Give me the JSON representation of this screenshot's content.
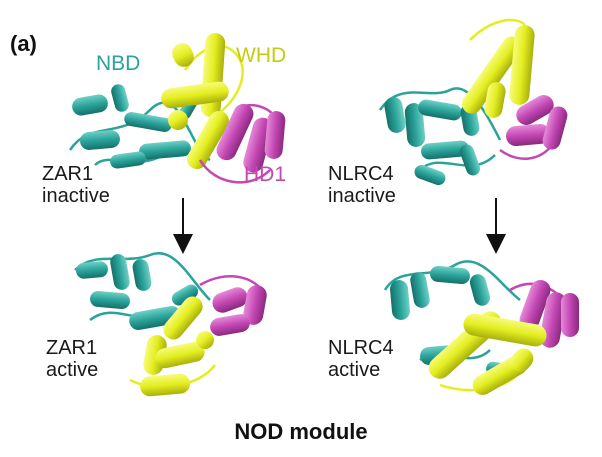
{
  "panel_label": "(a)",
  "domain_labels": {
    "nbd": "NBD",
    "whd": "WHD",
    "hd1": "HD1"
  },
  "colors": {
    "nbd": "#2aa39a",
    "whd": "#e3ee20",
    "hd1": "#c448b4",
    "arrow": "#111111"
  },
  "structures": {
    "zar1_inactive": "ZAR1\ninactive",
    "nlrc4_inactive": "NLRC4\ninactive",
    "zar1_active": "ZAR1\nactive",
    "nlrc4_active": "NLRC4\nactive"
  },
  "caption": "NOD module"
}
